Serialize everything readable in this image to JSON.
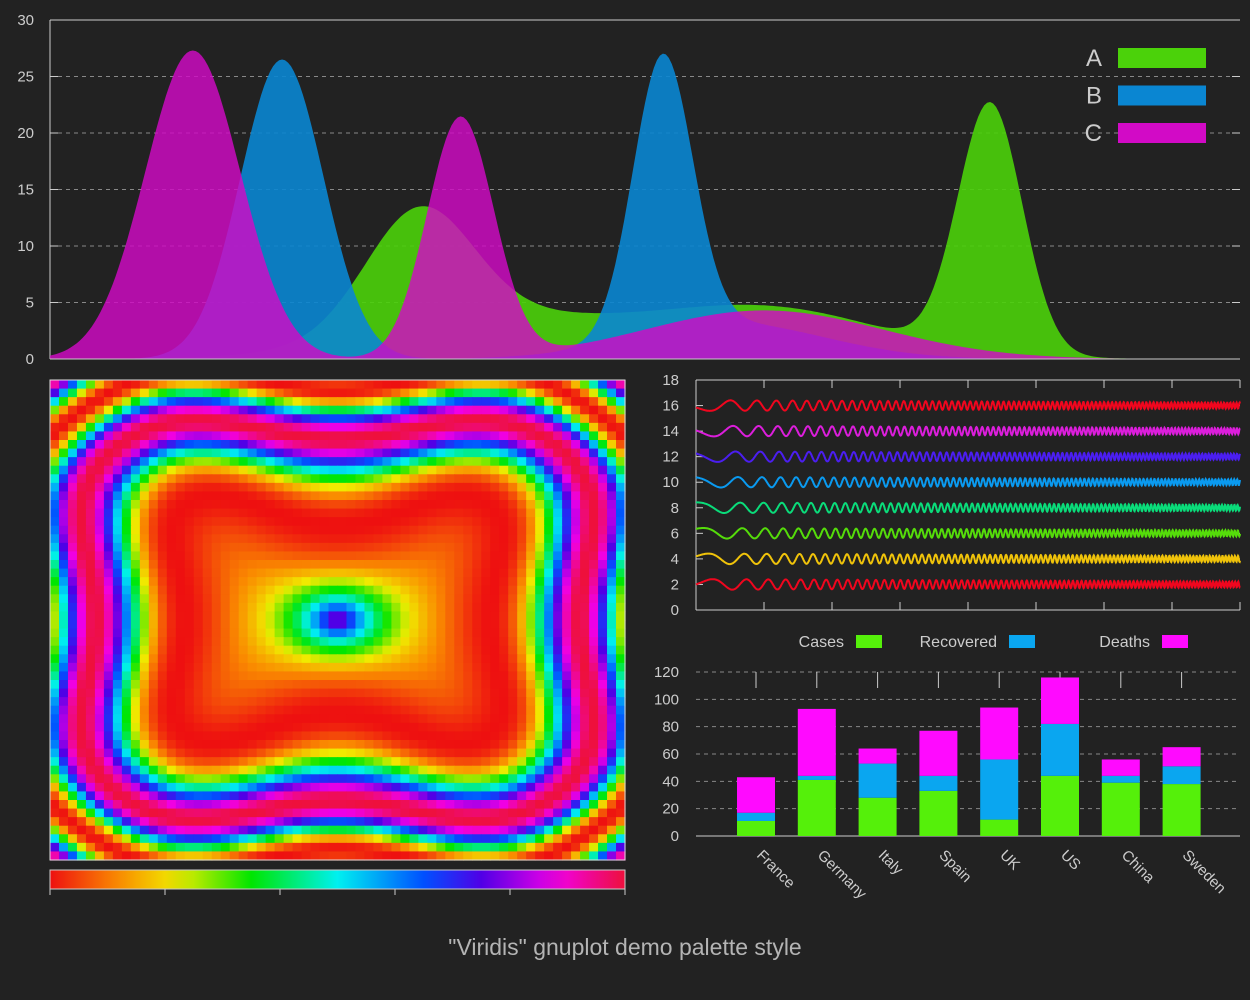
{
  "caption": "\"Viridis\" gnuplot demo palette style",
  "colors": {
    "background": "#222222",
    "axis": "#cccccc",
    "tick_text": "#cccccc",
    "grid": "#888888",
    "A": "#4bd20a",
    "B": "#0a86d2",
    "C": "#d20ac6"
  },
  "chart_data": [
    {
      "type": "area",
      "id": "distribution-chart",
      "title": "",
      "xlabel": "",
      "ylabel": "",
      "ylim": [
        0,
        30
      ],
      "yticks": [
        0,
        5,
        10,
        15,
        20,
        25,
        30
      ],
      "xlim": [
        0,
        100
      ],
      "grid": true,
      "legend": "top-right",
      "series": [
        {
          "name": "A",
          "color": "#4bd20a",
          "components": [
            {
              "amp": 10.5,
              "mu": 31,
              "sigma": 4.5
            },
            {
              "amp": 3.5,
              "mu": 37,
              "sigma": 10
            },
            {
              "amp": 4.5,
              "mu": 60,
              "sigma": 10
            },
            {
              "amp": 22.0,
              "mu": 79,
              "sigma": 2.7
            }
          ]
        },
        {
          "name": "B",
          "color": "#0a86d2",
          "components": [
            {
              "amp": 26.5,
              "mu": 19.5,
              "sigma": 3.5
            },
            {
              "amp": 24.5,
              "mu": 51.5,
              "sigma": 2.5
            },
            {
              "amp": 3.2,
              "mu": 57,
              "sigma": 8
            }
          ]
        },
        {
          "name": "C",
          "color": "#d20ac6",
          "components": [
            {
              "amp": 27.3,
              "mu": 12,
              "sigma": 4
            },
            {
              "amp": 21.3,
              "mu": 34.5,
              "sigma": 2.8
            },
            {
              "amp": 4.3,
              "mu": 60,
              "sigma": 10
            }
          ]
        }
      ]
    },
    {
      "type": "heatmap",
      "id": "interference-heatmap",
      "title": "",
      "palette": "rainbow",
      "colorbar": "bottom"
    },
    {
      "type": "line",
      "id": "oscillation-chart",
      "title": "",
      "ylim": [
        0,
        18
      ],
      "yticks": [
        0,
        2,
        4,
        6,
        8,
        10,
        12,
        14,
        16,
        18
      ],
      "x_ticks_count": 9,
      "series": [
        {
          "offset": 2,
          "color": "#f0061e"
        },
        {
          "offset": 4,
          "color": "#f0c30a"
        },
        {
          "offset": 6,
          "color": "#55dc0a"
        },
        {
          "offset": 8,
          "color": "#0adc7a"
        },
        {
          "offset": 10,
          "color": "#0a9af0"
        },
        {
          "offset": 12,
          "color": "#4b1ef0"
        },
        {
          "offset": 14,
          "color": "#dc1edc"
        },
        {
          "offset": 16,
          "color": "#f0061e"
        }
      ]
    },
    {
      "type": "bar",
      "id": "stacked-bar-chart",
      "stacked": true,
      "title": "",
      "ylim": [
        0,
        120
      ],
      "yticks": [
        0,
        20,
        40,
        60,
        80,
        100,
        120
      ],
      "grid": true,
      "legend": "top",
      "categories": [
        "France",
        "Germany",
        "Italy",
        "Spain",
        "UK",
        "US",
        "China",
        "Sweden"
      ],
      "series": [
        {
          "name": "Cases",
          "color": "#55f00a",
          "values": [
            11,
            41,
            28,
            33,
            12,
            44,
            39,
            38
          ]
        },
        {
          "name": "Recovered",
          "color": "#0aa6f0",
          "values": [
            6,
            3,
            25,
            11,
            44,
            38,
            5,
            13
          ]
        },
        {
          "name": "Deaths",
          "color": "#ff0aff",
          "values": [
            26,
            49,
            11,
            33,
            38,
            34,
            12,
            14
          ]
        }
      ]
    }
  ]
}
